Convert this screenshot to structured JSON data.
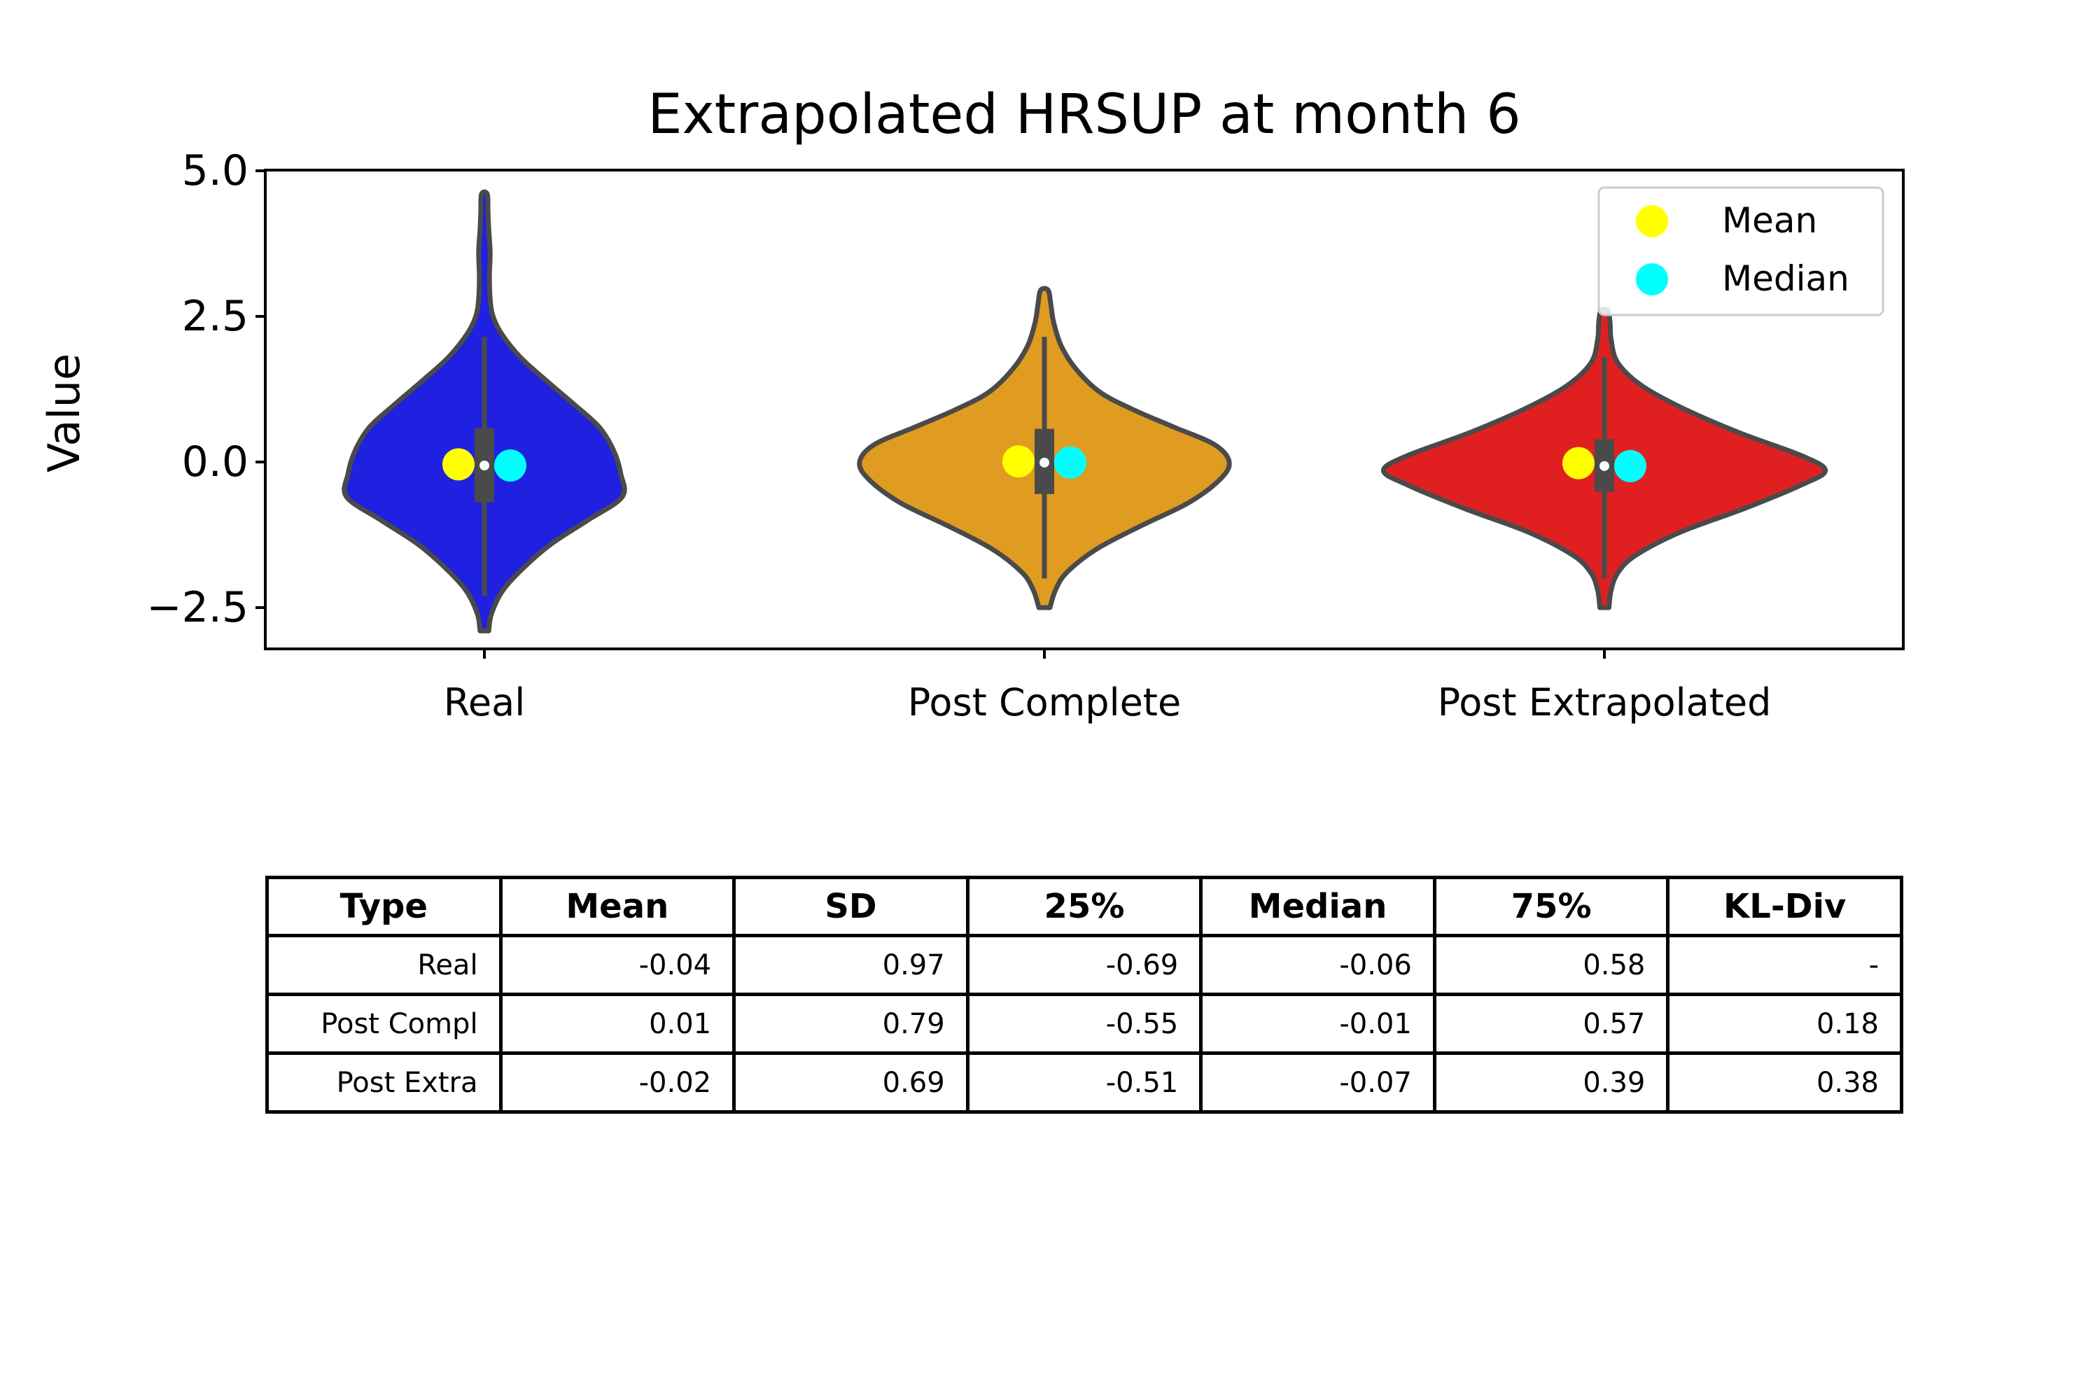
{
  "chart_data": {
    "type": "violin",
    "title": "Extrapolated HRSUP at month 6",
    "xlabel": "",
    "ylabel": "Value",
    "ylim": [
      -3.2,
      5.0
    ],
    "yticks": [
      5.0,
      2.5,
      0.0,
      -2.5
    ],
    "ytick_labels": [
      "5.0",
      "2.5",
      "0.0",
      "−2.5"
    ],
    "categories": [
      "Real",
      "Post Complete",
      "Post Extrapolated"
    ],
    "legend": {
      "placement": "upper right",
      "entries": [
        "Mean",
        "Median"
      ]
    },
    "colors": {
      "violins": [
        "#2020e0",
        "#e09c20",
        "#e02020"
      ],
      "mean": "#ffff00",
      "median": "#00ffff",
      "outline": "#4a4a4a"
    },
    "series": [
      {
        "category": "Real",
        "color": "#2020e0",
        "mean": -0.04,
        "median": -0.06,
        "q1": -0.69,
        "q3": 0.58,
        "whisker_low": -2.3,
        "whisker_high": 2.15,
        "min": -2.9,
        "max": 4.6,
        "density": [
          [
            -2.9,
            0.03
          ],
          [
            -2.6,
            0.05
          ],
          [
            -2.2,
            0.13
          ],
          [
            -1.8,
            0.28
          ],
          [
            -1.4,
            0.47
          ],
          [
            -1.0,
            0.72
          ],
          [
            -0.6,
            0.96
          ],
          [
            -0.2,
            0.95
          ],
          [
            0.2,
            0.9
          ],
          [
            0.6,
            0.8
          ],
          [
            1.0,
            0.62
          ],
          [
            1.4,
            0.43
          ],
          [
            1.8,
            0.25
          ],
          [
            2.2,
            0.12
          ],
          [
            2.5,
            0.06
          ],
          [
            2.8,
            0.04
          ],
          [
            3.2,
            0.035
          ],
          [
            3.6,
            0.04
          ],
          [
            4.0,
            0.03
          ],
          [
            4.3,
            0.025
          ],
          [
            4.6,
            0.02
          ]
        ]
      },
      {
        "category": "Post Complete",
        "color": "#e09c20",
        "mean": 0.01,
        "median": -0.01,
        "q1": -0.55,
        "q3": 0.57,
        "whisker_low": -2.0,
        "whisker_high": 2.15,
        "min": -2.5,
        "max": 2.95,
        "density": [
          [
            -2.5,
            0.03
          ],
          [
            -2.2,
            0.06
          ],
          [
            -1.9,
            0.12
          ],
          [
            -1.5,
            0.28
          ],
          [
            -1.1,
            0.52
          ],
          [
            -0.7,
            0.78
          ],
          [
            -0.3,
            0.95
          ],
          [
            0.0,
            1.0
          ],
          [
            0.3,
            0.92
          ],
          [
            0.6,
            0.7
          ],
          [
            0.9,
            0.48
          ],
          [
            1.2,
            0.3
          ],
          [
            1.6,
            0.17
          ],
          [
            2.0,
            0.09
          ],
          [
            2.4,
            0.05
          ],
          [
            2.7,
            0.035
          ],
          [
            2.95,
            0.02
          ]
        ]
      },
      {
        "category": "Post Extrapolated",
        "color": "#e02020",
        "mean": -0.02,
        "median": -0.07,
        "q1": -0.51,
        "q3": 0.39,
        "whisker_low": -2.0,
        "whisker_high": 1.8,
        "min": -2.5,
        "max": 2.6,
        "density": [
          [
            -2.5,
            0.02
          ],
          [
            -2.2,
            0.03
          ],
          [
            -1.9,
            0.06
          ],
          [
            -1.6,
            0.14
          ],
          [
            -1.2,
            0.34
          ],
          [
            -0.8,
            0.62
          ],
          [
            -0.4,
            0.87
          ],
          [
            -0.15,
            0.98
          ],
          [
            0.1,
            0.88
          ],
          [
            0.5,
            0.6
          ],
          [
            0.9,
            0.36
          ],
          [
            1.3,
            0.17
          ],
          [
            1.7,
            0.06
          ],
          [
            2.1,
            0.03
          ],
          [
            2.4,
            0.025
          ],
          [
            2.6,
            0.015
          ]
        ]
      }
    ]
  },
  "table": {
    "headers": [
      "Type",
      "Mean",
      "SD",
      "25%",
      "Median",
      "75%",
      "KL-Div"
    ],
    "rows": [
      [
        "Real",
        "-0.04",
        "0.97",
        "-0.69",
        "-0.06",
        "0.58",
        "-"
      ],
      [
        "Post Compl",
        "0.01",
        "0.79",
        "-0.55",
        "-0.01",
        "0.57",
        "0.18"
      ],
      [
        "Post Extra",
        "-0.02",
        "0.69",
        "-0.51",
        "-0.07",
        "0.39",
        "0.38"
      ]
    ]
  }
}
